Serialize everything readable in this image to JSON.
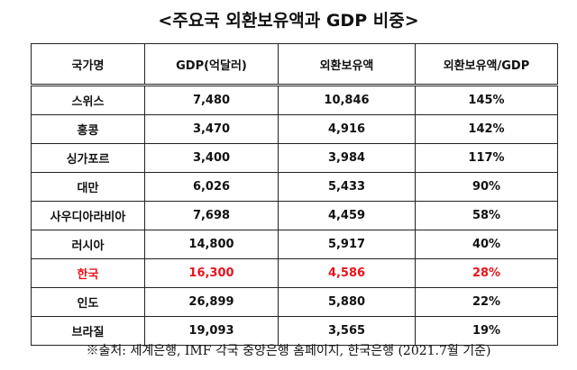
{
  "title": "<주요국 외환보유액과 GDP 비중>",
  "chart_data": {
    "type": "table",
    "title": "<주요국 외환보유액과 GDP 비중>",
    "columns": [
      "국가명",
      "GDP(억달러)",
      "외환보유액",
      "외환보유액/GDP"
    ],
    "rows": [
      {
        "country": "스위스",
        "gdp": "7,480",
        "reserves": "10,846",
        "ratio": "145%"
      },
      {
        "country": "홍콩",
        "gdp": "3,470",
        "reserves": "4,916",
        "ratio": "142%"
      },
      {
        "country": "싱가포르",
        "gdp": "3,400",
        "reserves": "3,984",
        "ratio": "117%"
      },
      {
        "country": "대만",
        "gdp": "6,026",
        "reserves": "5,433",
        "ratio": "90%"
      },
      {
        "country": "사우디아라비아",
        "gdp": "7,698",
        "reserves": "4,459",
        "ratio": "58%"
      },
      {
        "country": "러시아",
        "gdp": "14,800",
        "reserves": "5,917",
        "ratio": "40%"
      },
      {
        "country": "한국",
        "gdp": "16,300",
        "reserves": "4,586",
        "ratio": "28%",
        "highlight": true
      },
      {
        "country": "인도",
        "gdp": "26,899",
        "reserves": "5,880",
        "ratio": "22%"
      },
      {
        "country": "브라질",
        "gdp": "19,093",
        "reserves": "3,565",
        "ratio": "19%"
      }
    ],
    "highlight_color": "#e8141b"
  },
  "source": "※출처: 세계은행, IMF 각국 중앙은행 홈페이지, 한국은행 (2021.7월 기준)"
}
